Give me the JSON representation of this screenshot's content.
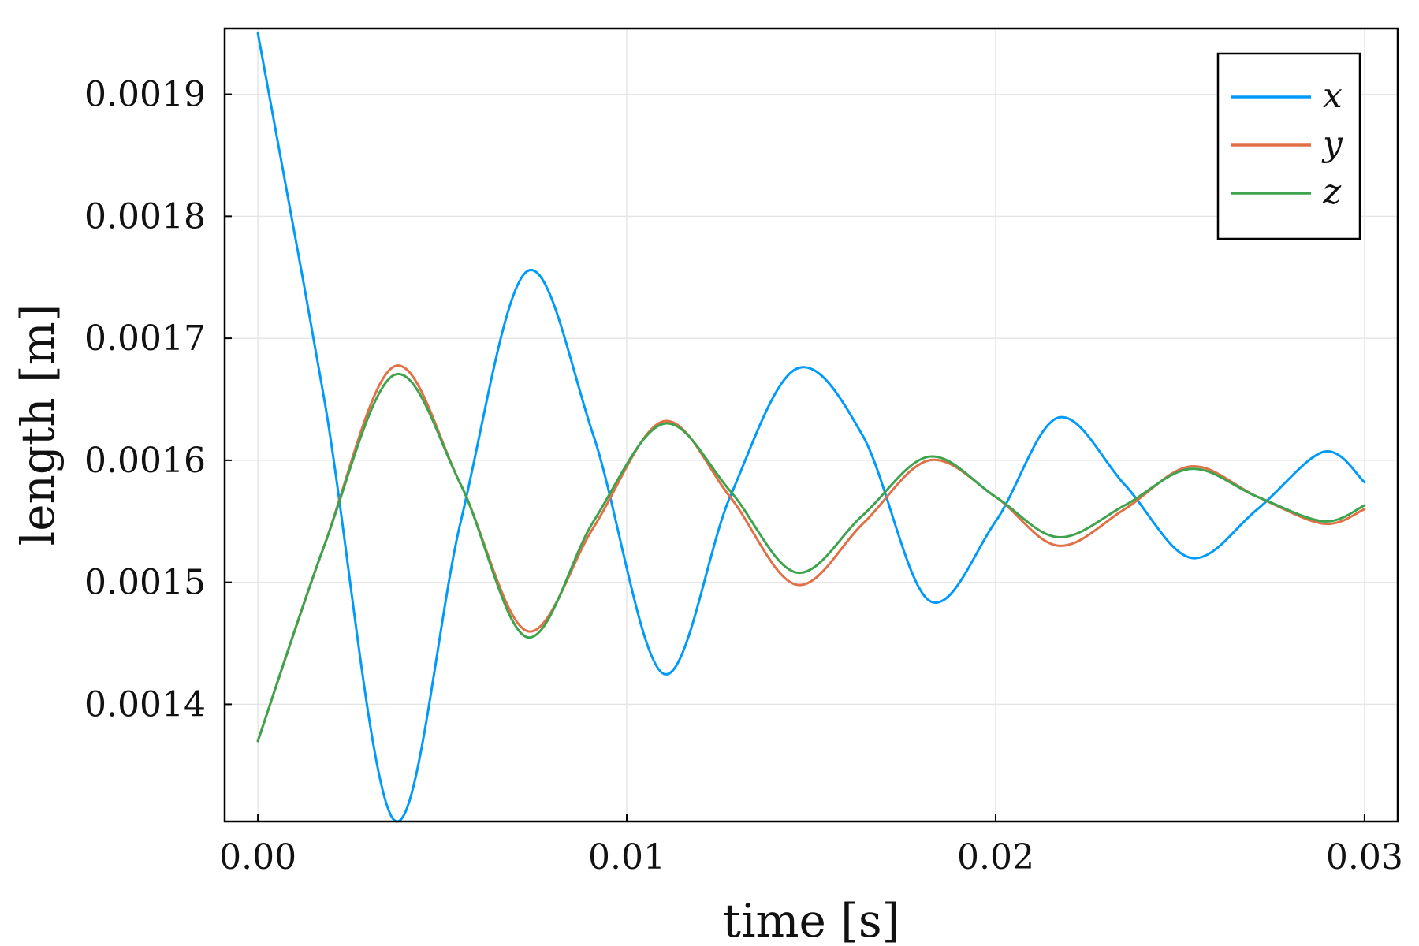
{
  "chart_data": {
    "type": "line",
    "xlabel": "time [s]",
    "ylabel": "length [m]",
    "xlim": [
      -0.0009,
      0.0309
    ],
    "ylim": [
      0.001304,
      0.001954
    ],
    "xticks": [
      0.0,
      0.01,
      0.02,
      0.03
    ],
    "xtick_labels": [
      "0.00",
      "0.01",
      "0.02",
      "0.03"
    ],
    "yticks": [
      0.0014,
      0.0015,
      0.0016,
      0.0017,
      0.0018,
      0.0019
    ],
    "ytick_labels": [
      "0.0014",
      "0.0015",
      "0.0016",
      "0.0017",
      "0.0018",
      "0.0019"
    ],
    "grid": true,
    "legend_position": "top-right",
    "series": [
      {
        "name": "x",
        "color": "#009AFA",
        "x": [
          0.0,
          0.0018,
          0.0037,
          0.0055,
          0.0073,
          0.0091,
          0.011,
          0.0128,
          0.0146,
          0.0164,
          0.0182,
          0.02,
          0.0217,
          0.0235,
          0.0253,
          0.0271,
          0.0289,
          0.03
        ],
        "y": [
          0.00195,
          0.00165,
          0.001305,
          0.00155,
          0.001755,
          0.00162,
          0.001425,
          0.00157,
          0.001675,
          0.00162,
          0.001485,
          0.00155,
          0.001635,
          0.00158,
          0.00152,
          0.00156,
          0.001607,
          0.001582
        ]
      },
      {
        "name": "y",
        "color": "#E26F46",
        "x": [
          0.0,
          0.0018,
          0.0037,
          0.0055,
          0.0073,
          0.0091,
          0.011,
          0.0128,
          0.0146,
          0.0164,
          0.0182,
          0.02,
          0.0217,
          0.0235,
          0.0253,
          0.0271,
          0.0289,
          0.03
        ],
        "y": [
          0.00137,
          0.00153,
          0.001677,
          0.00158,
          0.00146,
          0.001545,
          0.001632,
          0.00157,
          0.001498,
          0.001548,
          0.0016,
          0.00157,
          0.00153,
          0.00156,
          0.001595,
          0.00157,
          0.001548,
          0.00156
        ]
      },
      {
        "name": "z",
        "color": "#3DA44D",
        "x": [
          0.0,
          0.0018,
          0.0037,
          0.0055,
          0.0073,
          0.0091,
          0.011,
          0.0128,
          0.0146,
          0.0164,
          0.0182,
          0.02,
          0.0217,
          0.0235,
          0.0253,
          0.0271,
          0.0289,
          0.03
        ],
        "y": [
          0.00137,
          0.00153,
          0.00167,
          0.00158,
          0.001455,
          0.00155,
          0.00163,
          0.001575,
          0.001508,
          0.001555,
          0.001603,
          0.00157,
          0.001537,
          0.001563,
          0.001593,
          0.00157,
          0.00155,
          0.001563
        ]
      }
    ]
  }
}
